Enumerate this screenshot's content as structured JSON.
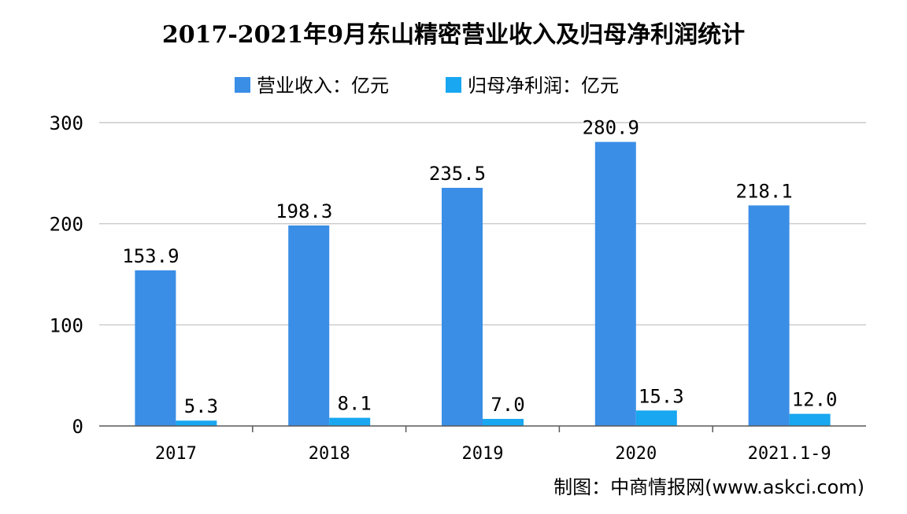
{
  "chart_data": {
    "type": "bar",
    "title": "2017-2021年9月东山精密营业收入及归母净利润统计",
    "categories": [
      "2017",
      "2018",
      "2019",
      "2020",
      "2021.1-9"
    ],
    "series": [
      {
        "name": "营业收入：亿元",
        "values": [
          153.9,
          198.3,
          235.5,
          280.9,
          218.1
        ],
        "labels": [
          "153.9",
          "198.3",
          "235.5",
          "280.9",
          "218.1"
        ],
        "color": "#3a8ee6"
      },
      {
        "name": "归母净利润：亿元",
        "values": [
          5.3,
          8.1,
          7.0,
          15.3,
          12.0
        ],
        "labels": [
          "5.3",
          "8.1",
          "7.0",
          "15.3",
          "12.0"
        ],
        "color": "#18a7f0"
      }
    ],
    "ylim": [
      0,
      300
    ],
    "yticks": [
      0,
      100,
      200,
      300
    ],
    "grid": true,
    "legend_position": "top-center",
    "xlabel": "",
    "ylabel": ""
  },
  "credit": "制图：中商情报网(www.askci.com)",
  "colors": {
    "gridline": "#bfbfbf",
    "axis": "#595959",
    "text": "#000000"
  }
}
